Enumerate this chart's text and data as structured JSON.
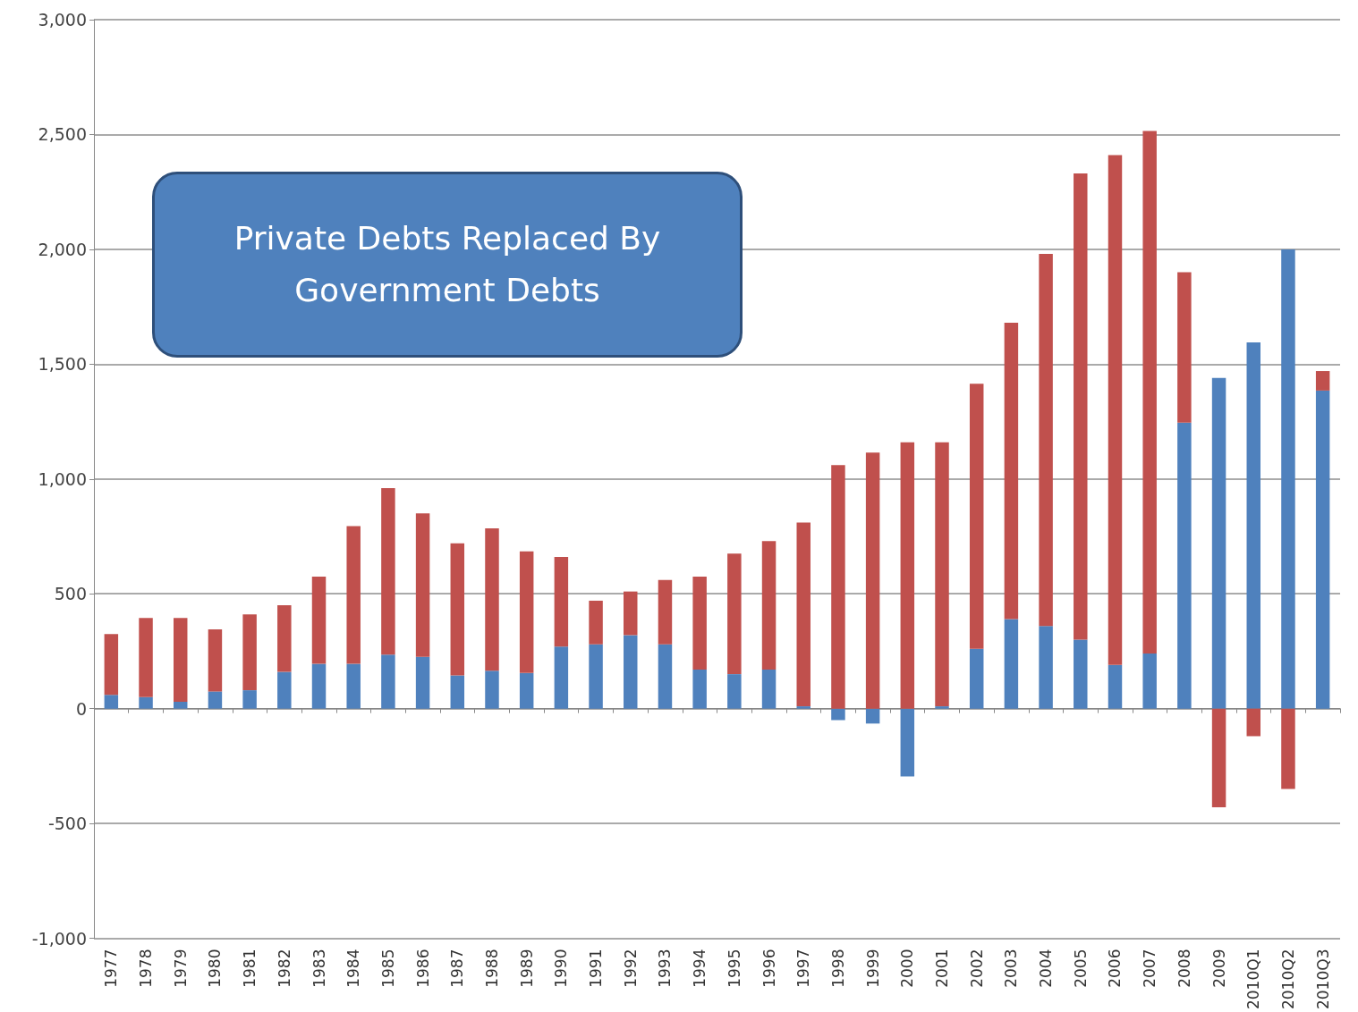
{
  "chart_data": {
    "type": "bar",
    "stacked": true,
    "annotations": [
      "Private Debts Replaced By Government Debts"
    ],
    "categories": [
      "1977",
      "1978",
      "1979",
      "1980",
      "1981",
      "1982",
      "1983",
      "1984",
      "1985",
      "1986",
      "1987",
      "1988",
      "1989",
      "1990",
      "1991",
      "1992",
      "1993",
      "1994",
      "1995",
      "1996",
      "1997",
      "1998",
      "1999",
      "2000",
      "2001",
      "2002",
      "2003",
      "2004",
      "2005",
      "2006",
      "2007",
      "2008",
      "2009",
      "2010Q1",
      "2010Q2",
      "2010Q3"
    ],
    "series": [
      {
        "color": "#4f81bd",
        "values": [
          60,
          50,
          30,
          75,
          80,
          160,
          195,
          195,
          235,
          225,
          145,
          165,
          155,
          270,
          280,
          320,
          280,
          170,
          150,
          170,
          10,
          -50,
          -65,
          -295,
          10,
          260,
          390,
          360,
          300,
          190,
          240,
          1245,
          1440,
          1595,
          2000,
          1385
        ]
      },
      {
        "color": "#c0504d",
        "values": [
          265,
          345,
          365,
          270,
          330,
          290,
          380,
          600,
          725,
          625,
          575,
          620,
          530,
          390,
          190,
          190,
          280,
          405,
          525,
          560,
          800,
          1060,
          1115,
          1160,
          1150,
          1155,
          1290,
          1620,
          2030,
          2220,
          2275,
          655,
          -430,
          -120,
          -350,
          85
        ]
      }
    ],
    "ylim": [
      -1000,
      3000
    ],
    "yticks": [
      {
        "value": -1000,
        "label": "-1,000"
      },
      {
        "value": -500,
        "label": "-500"
      },
      {
        "value": 0,
        "label": "0"
      },
      {
        "value": 500,
        "label": "500"
      },
      {
        "value": 1000,
        "label": "1,000"
      },
      {
        "value": 1500,
        "label": "1,500"
      },
      {
        "value": 2000,
        "label": "2,000"
      },
      {
        "value": 2500,
        "label": "2,500"
      },
      {
        "value": 3000,
        "label": "3,000"
      }
    ],
    "grid": "y"
  }
}
